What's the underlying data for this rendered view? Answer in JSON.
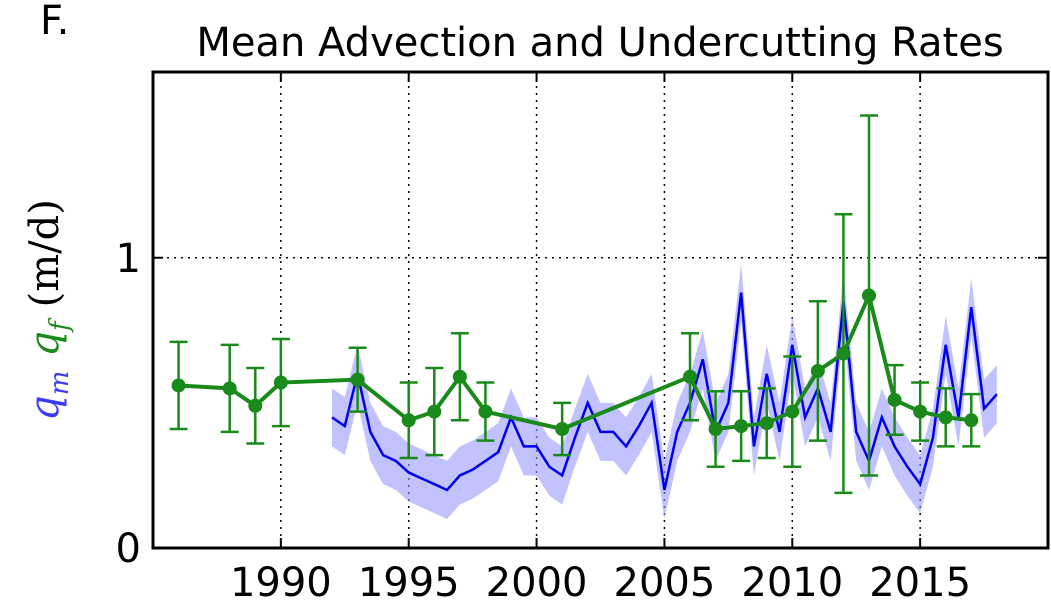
{
  "panel_label": "F.",
  "chart_data": {
    "type": "line",
    "title": "Mean Advection and Undercutting Rates",
    "ylabel": [
      {
        "text": "q",
        "sub": "m",
        "color": "#3a3aff"
      },
      {
        "text": "q",
        "sub": "f",
        "color": "#1a8a1a"
      },
      {
        "text": "(m/d)",
        "color": "#000000"
      }
    ],
    "xlim": [
      1985,
      2020
    ],
    "ylim": [
      0,
      1.64
    ],
    "xticks": [
      1990,
      1995,
      2000,
      2005,
      2010,
      2015
    ],
    "yticks": [
      0,
      1
    ],
    "grid": true,
    "series": [
      {
        "color": "#0000ee",
        "band_color": "#9a9aff",
        "band": 0.1,
        "x": [
          1992,
          1992.5,
          1993,
          1993.5,
          1994,
          1994.5,
          1995,
          1995.5,
          1996,
          1996.5,
          1997,
          1997.5,
          1998,
          1998.5,
          1999,
          1999.5,
          2000,
          2000.5,
          2001,
          2001.5,
          2002,
          2002.5,
          2003,
          2003.5,
          2004,
          2004.5,
          2005,
          2005.5,
          2006,
          2006.5,
          2007,
          2007.5,
          2008,
          2008.5,
          2009,
          2009.5,
          2010,
          2010.5,
          2011,
          2011.5,
          2012,
          2012.5,
          2013,
          2013.5,
          2014,
          2014.5,
          2015,
          2015.5,
          2016,
          2016.5,
          2017,
          2017.5,
          2018
        ],
        "values": [
          0.45,
          0.42,
          0.6,
          0.4,
          0.32,
          0.3,
          0.26,
          0.24,
          0.22,
          0.2,
          0.25,
          0.27,
          0.3,
          0.33,
          0.45,
          0.35,
          0.35,
          0.28,
          0.25,
          0.38,
          0.5,
          0.4,
          0.4,
          0.35,
          0.42,
          0.5,
          0.2,
          0.4,
          0.5,
          0.65,
          0.4,
          0.5,
          0.88,
          0.35,
          0.6,
          0.4,
          0.7,
          0.45,
          0.55,
          0.4,
          0.85,
          0.4,
          0.3,
          0.45,
          0.35,
          0.28,
          0.22,
          0.38,
          0.7,
          0.45,
          0.83,
          0.48,
          0.53
        ]
      },
      {
        "color": "#1a8a1a",
        "x": [
          1986,
          1988,
          1989,
          1990,
          1993,
          1995,
          1996,
          1997,
          1998,
          2001,
          2006,
          2007,
          2008,
          2009,
          2010,
          2011,
          2012,
          2013,
          2014,
          2015,
          2016,
          2017
        ],
        "values": [
          0.56,
          0.55,
          0.49,
          0.57,
          0.58,
          0.44,
          0.47,
          0.59,
          0.47,
          0.41,
          0.59,
          0.41,
          0.42,
          0.43,
          0.47,
          0.61,
          0.67,
          0.87,
          0.51,
          0.47,
          0.45,
          0.44
        ],
        "errors": [
          0.15,
          0.15,
          0.13,
          0.15,
          0.11,
          0.13,
          0.15,
          0.15,
          0.1,
          0.09,
          0.15,
          0.13,
          0.12,
          0.12,
          0.19,
          0.24,
          0.48,
          0.62,
          0.12,
          0.1,
          0.1,
          0.09
        ]
      }
    ]
  }
}
